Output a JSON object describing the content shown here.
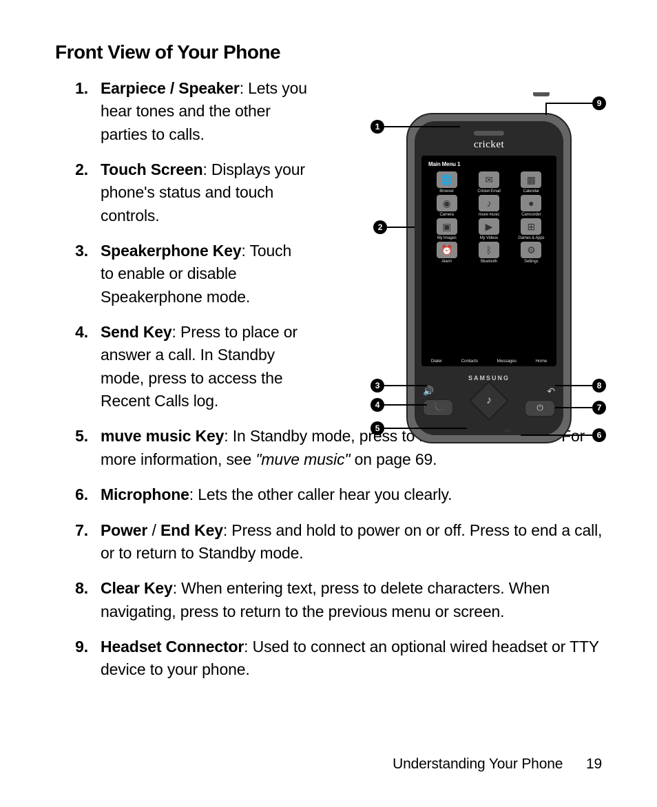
{
  "section_title": "Front View of Your Phone",
  "items": [
    {
      "num": "1.",
      "term": "Earpiece / Speaker",
      "desc": ": Lets you hear tones and the other parties to calls."
    },
    {
      "num": "2.",
      "term": "Touch Screen",
      "desc": ": Displays your phone's status and touch controls."
    },
    {
      "num": "3.",
      "term": "Speakerphone Key",
      "desc": ": Touch to enable or disable Speakerphone mode."
    },
    {
      "num": "4.",
      "term": "Send Key",
      "desc": ": Press to place or answer a call. In Standby mode, press to access the Recent Calls log."
    },
    {
      "num": "5.",
      "term": "muve music Key",
      "desc_pre": ": In Standby mode, press to launch muve music. For more information, see ",
      "ref": "\"muve music\"",
      "desc_post": " on page 69."
    },
    {
      "num": "6.",
      "term": "Microphone",
      "desc": ": Lets the other caller hear you clearly."
    },
    {
      "num": "7.",
      "term": "Power",
      "term_sep": " / ",
      "term2": "End Key",
      "desc": ":  Press and hold to power on or off. Press to end a call, or to return to Standby mode."
    },
    {
      "num": "8.",
      "term": "Clear Key",
      "desc": ": When entering text, press to delete characters. When navigating, press to return to the previous menu or screen."
    },
    {
      "num": "9.",
      "term": "Headset Connector",
      "desc": ": Used to connect an optional wired headset or TTY device to your phone."
    }
  ],
  "footer": {
    "section": "Understanding Your Phone",
    "page": "19"
  },
  "phone": {
    "carrier": "cricket",
    "screen_title": "Main Menu 1",
    "brand": "SAMSUNG",
    "apps": [
      {
        "label": "Browser",
        "icon": "🌐"
      },
      {
        "label": "Cricket Email",
        "icon": "✉"
      },
      {
        "label": "Calendar",
        "icon": "▦"
      },
      {
        "label": "Camera",
        "icon": "◉"
      },
      {
        "label": "muve music",
        "icon": "♪"
      },
      {
        "label": "Camcorder",
        "icon": "●"
      },
      {
        "label": "My Images",
        "icon": "▣"
      },
      {
        "label": "My Videos",
        "icon": "▶"
      },
      {
        "label": "Games & Apps",
        "icon": "⊞"
      },
      {
        "label": "Alarm",
        "icon": "⏰"
      },
      {
        "label": "Bluetooth",
        "icon": "ᛒ"
      },
      {
        "label": "Settings",
        "icon": "⚙"
      }
    ],
    "softkeys": [
      "Dialer",
      "Contacts",
      "Messages",
      "Home"
    ]
  },
  "callouts": [
    "1",
    "2",
    "3",
    "4",
    "5",
    "6",
    "7",
    "8",
    "9"
  ]
}
